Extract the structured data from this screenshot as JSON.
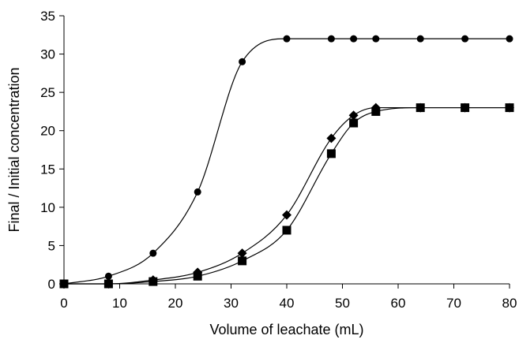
{
  "chart_data": {
    "type": "line",
    "title": "",
    "xlabel": "Volume of leachate (mL)",
    "ylabel": "Final / Initial concentration",
    "xlim": [
      0,
      80
    ],
    "ylim": [
      0,
      35
    ],
    "xticks": [
      0,
      10,
      20,
      30,
      40,
      50,
      60,
      70,
      80
    ],
    "yticks": [
      0,
      5,
      10,
      15,
      20,
      25,
      30,
      35
    ],
    "grid": false,
    "legend": "none",
    "series": [
      {
        "marker": "circle",
        "color": "#000000",
        "x": [
          0,
          8,
          16,
          24,
          32,
          40,
          48,
          52,
          56,
          64,
          72,
          80
        ],
        "y": [
          0,
          1,
          4,
          12,
          29,
          32,
          32,
          32,
          32,
          32,
          32,
          32
        ]
      },
      {
        "marker": "diamond",
        "color": "#000000",
        "x": [
          0,
          8,
          16,
          24,
          32,
          40,
          48,
          52,
          56,
          64,
          72,
          80
        ],
        "y": [
          0,
          0,
          0.5,
          1.5,
          4,
          9,
          19,
          22,
          23,
          23,
          23,
          23
        ]
      },
      {
        "marker": "square",
        "color": "#000000",
        "x": [
          0,
          8,
          16,
          24,
          32,
          40,
          48,
          52,
          56,
          64,
          72,
          80
        ],
        "y": [
          0,
          0,
          0.3,
          1,
          3,
          7,
          17,
          21,
          22.5,
          23,
          23,
          23
        ]
      }
    ]
  }
}
